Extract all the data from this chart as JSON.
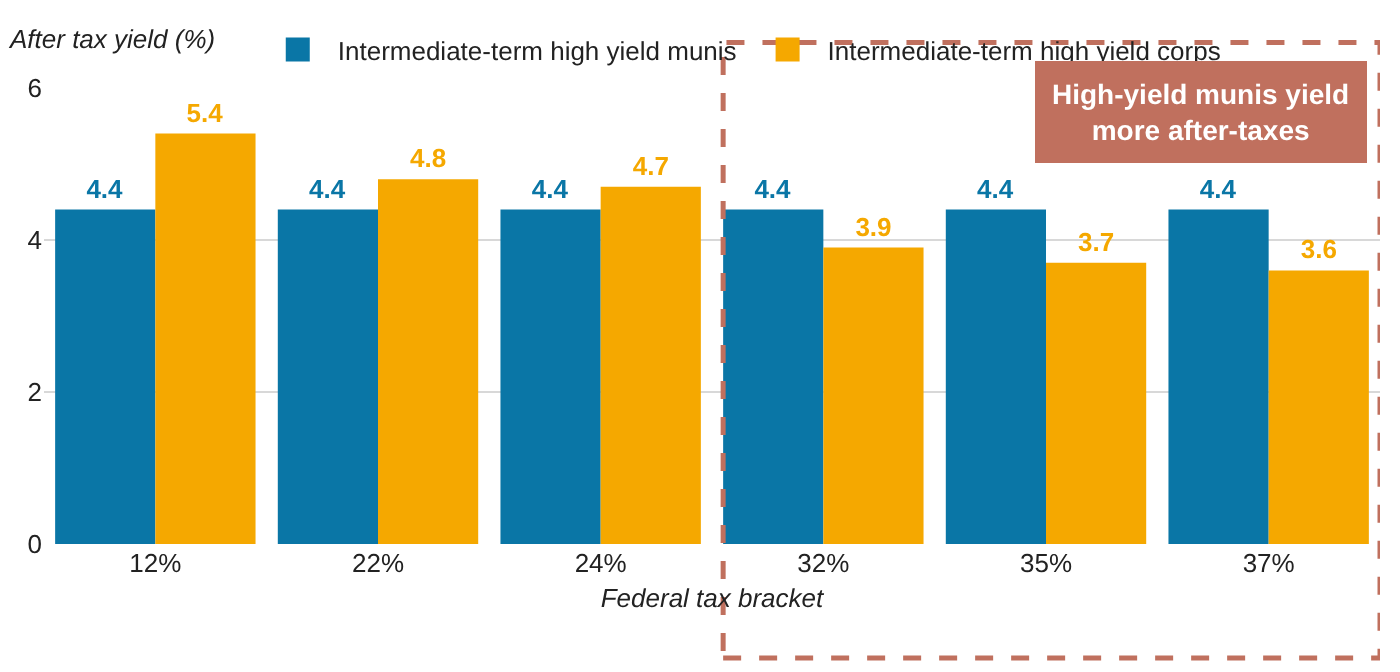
{
  "chart_data": {
    "type": "bar",
    "xlabel": "Federal tax bracket",
    "ylabel": "After tax yield (%)",
    "categories": [
      "12%",
      "22%",
      "24%",
      "32%",
      "35%",
      "37%"
    ],
    "series": [
      {
        "name": "Intermediate-term high yield munis",
        "color": "#0a76a6",
        "values": [
          4.4,
          4.4,
          4.4,
          4.4,
          4.4,
          4.4
        ]
      },
      {
        "name": "Intermediate-term high yield corps",
        "color": "#f5a800",
        "values": [
          5.4,
          4.8,
          4.7,
          3.9,
          3.7,
          3.6
        ]
      }
    ],
    "ylim": [
      0,
      6
    ],
    "yticks": [
      0,
      2,
      4,
      6
    ],
    "grid": "y",
    "legend": "top",
    "data_labels": true,
    "annotations": [
      "High-yield munis yield\nmore after-taxes"
    ]
  }
}
